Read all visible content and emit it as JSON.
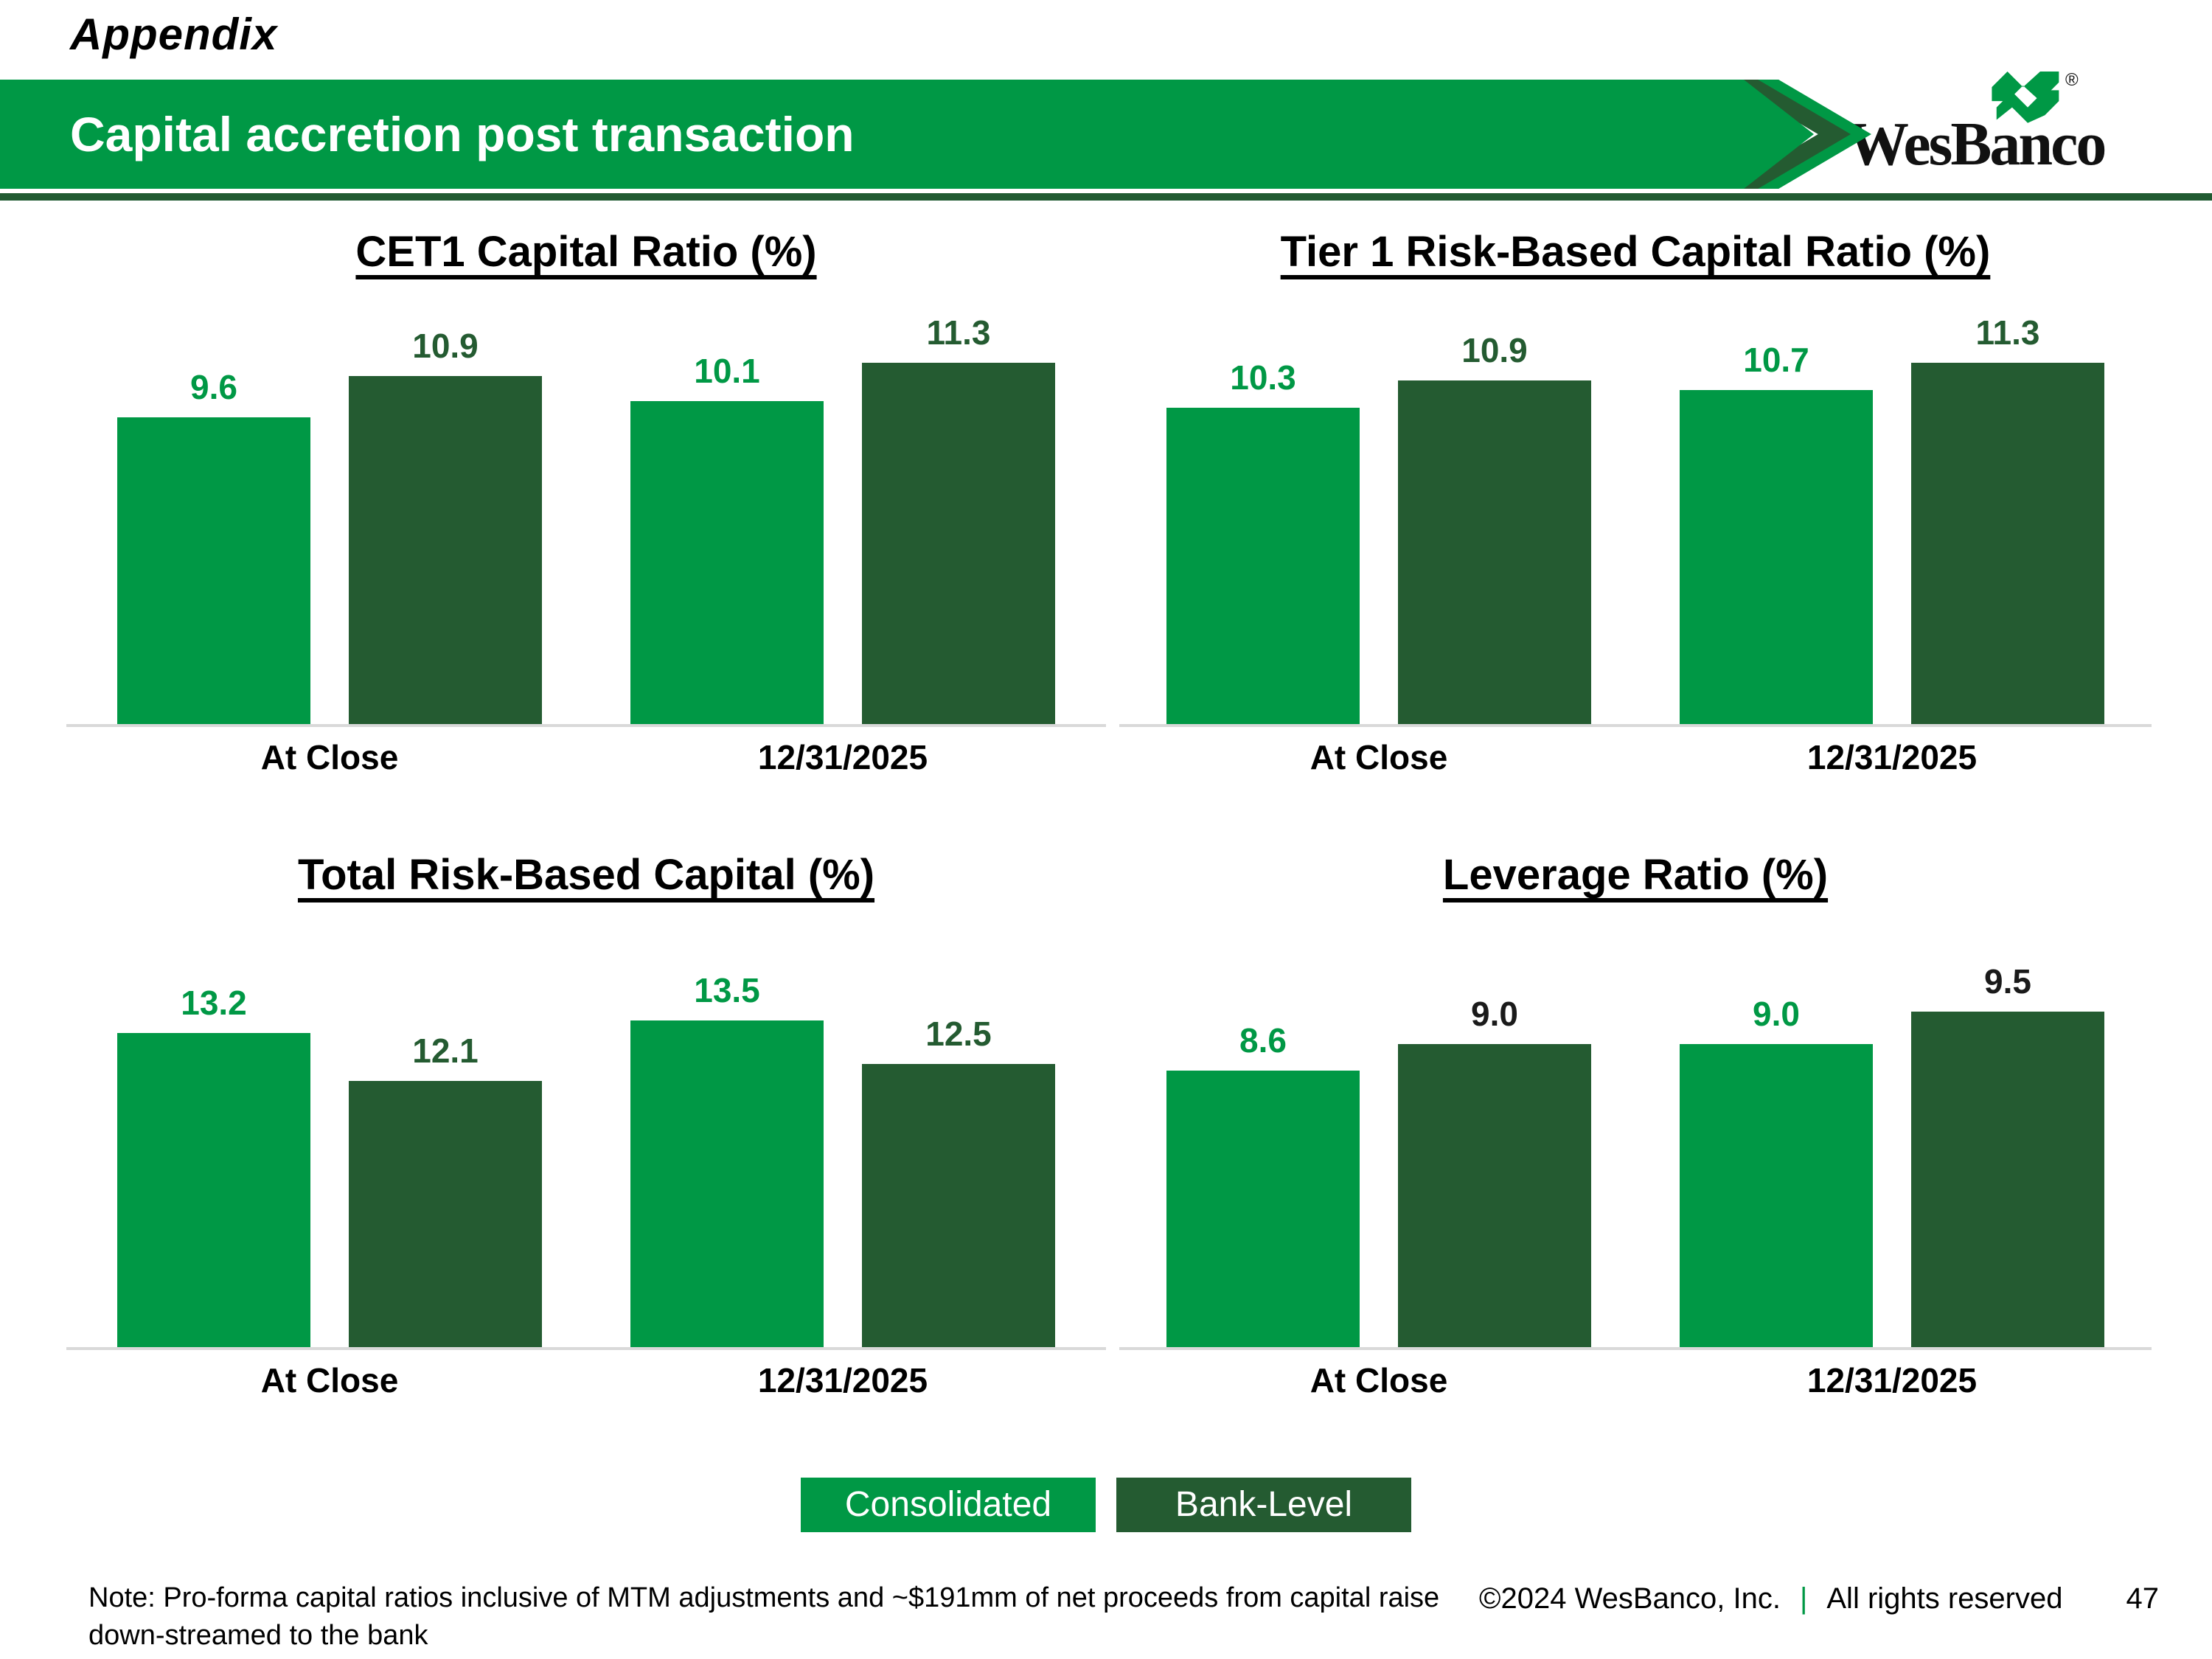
{
  "header": {
    "eyebrow": "Appendix",
    "title": "Capital accretion post transaction",
    "logo_text": "WesBanco",
    "logo_reg_mark": "®"
  },
  "colors": {
    "bright_green": "#009845",
    "dark_green": "#245B31",
    "rule_green": "#215B32",
    "baseline_gray": "#D9D9D9"
  },
  "chart_data": [
    {
      "type": "bar",
      "title": "CET1 Capital Ratio (%)",
      "categories": [
        "At Close",
        "12/31/2025"
      ],
      "series": [
        {
          "name": "Consolidated",
          "color": "#009845",
          "label_color": "#009845",
          "values": [
            9.6,
            10.1
          ],
          "labels": [
            "9.6",
            "10.1"
          ]
        },
        {
          "name": "Bank-Level",
          "color": "#245B31",
          "label_color": "#245B31",
          "values": [
            10.9,
            11.3
          ],
          "labels": [
            "10.9",
            "11.3"
          ]
        }
      ],
      "ylim": [
        0,
        12.0
      ],
      "grid": false,
      "legend_position": "shared-bottom"
    },
    {
      "type": "bar",
      "title": "Tier 1 Risk-Based Capital Ratio (%)",
      "categories": [
        "At Close",
        "12/31/2025"
      ],
      "series": [
        {
          "name": "Consolidated",
          "color": "#009845",
          "label_color": "#009845",
          "values": [
            10.3,
            10.7
          ],
          "labels": [
            "10.3",
            "10.7"
          ]
        },
        {
          "name": "Bank-Level",
          "color": "#245B31",
          "label_color": "#245B31",
          "values": [
            10.9,
            11.3
          ],
          "labels": [
            "10.9",
            "11.3"
          ]
        }
      ],
      "ylim": [
        3.2,
        11.8
      ],
      "grid": false,
      "legend_position": "shared-bottom"
    },
    {
      "type": "bar",
      "title": "Total Risk-Based Capital (%)",
      "categories": [
        "At Close",
        "12/31/2025"
      ],
      "series": [
        {
          "name": "Consolidated",
          "color": "#009845",
          "label_color": "#009845",
          "values": [
            13.2,
            13.5
          ],
          "labels": [
            "13.2",
            "13.5"
          ]
        },
        {
          "name": "Bank-Level",
          "color": "#245B31",
          "label_color": "#245B31",
          "values": [
            12.1,
            12.5
          ],
          "labels": [
            "12.1",
            "12.5"
          ]
        }
      ],
      "ylim": [
        6.0,
        13.95
      ],
      "grid": false,
      "legend_position": "shared-bottom"
    },
    {
      "type": "bar",
      "title": "Leverage Ratio (%)",
      "categories": [
        "At Close",
        "12/31/2025"
      ],
      "series": [
        {
          "name": "Consolidated",
          "color": "#009845",
          "label_color": "#009845",
          "values": [
            8.6,
            9.0
          ],
          "labels": [
            "8.6",
            "9.0"
          ]
        },
        {
          "name": "Bank-Level",
          "color": "#245B31",
          "label_color": "#1A1A1A",
          "values": [
            9.0,
            9.5
          ],
          "labels": [
            "9.0",
            "9.5"
          ]
        }
      ],
      "ylim": [
        4.4,
        10.0
      ],
      "grid": false,
      "legend_position": "shared-bottom"
    }
  ],
  "legend": {
    "items": [
      {
        "label": "Consolidated",
        "color": "#009845"
      },
      {
        "label": "Bank-Level",
        "color": "#245B31"
      }
    ]
  },
  "footer": {
    "note": "Note: Pro-forma capital ratios inclusive of MTM adjustments and ~$191mm of net proceeds from capital raise down-streamed to the bank",
    "copyright": "©2024 WesBanco, Inc.",
    "divider": "|",
    "rights": "All rights reserved",
    "page_number": "47"
  }
}
